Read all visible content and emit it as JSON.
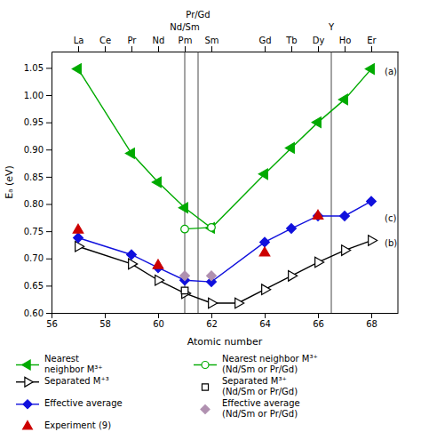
{
  "chart_data": {
    "type": "line",
    "x_label": "Atomic number",
    "y_label": "Eₐ (eV)",
    "xlim": [
      56,
      69
    ],
    "ylim": [
      0.6,
      1.08
    ],
    "xticks": [
      56,
      58,
      60,
      62,
      64,
      66,
      68
    ],
    "yticks": [
      {
        "value": 0.6,
        "label": "0.60"
      },
      {
        "value": 0.65,
        "label": "0.65"
      },
      {
        "value": 0.7,
        "label": "0.70"
      },
      {
        "value": 0.75,
        "label": "0.75"
      },
      {
        "value": 0.8,
        "label": "0.80"
      },
      {
        "value": 0.85,
        "label": "0.85"
      },
      {
        "value": 0.9,
        "label": "0.90"
      },
      {
        "value": 0.95,
        "label": "0.95"
      },
      {
        "value": 1.0,
        "label": "1.00"
      },
      {
        "value": 1.05,
        "label": "1.05"
      }
    ],
    "x2ticks": [
      {
        "value": 57,
        "label": "La"
      },
      {
        "value": 58,
        "label": "Ce"
      },
      {
        "value": 59,
        "label": "Pr"
      },
      {
        "value": 60,
        "label": "Nd"
      },
      {
        "value": 61,
        "label": "Pm"
      },
      {
        "value": 62,
        "label": "Sm"
      },
      {
        "value": 64,
        "label": "Gd"
      },
      {
        "value": 65,
        "label": "Tb"
      },
      {
        "value": 66,
        "label": "Dy"
      },
      {
        "value": 67,
        "label": "Ho"
      },
      {
        "value": 68,
        "label": "Er"
      }
    ],
    "grid": false,
    "legend": "bottom",
    "series": [
      {
        "name": "Nearest\nneighbor M³⁺",
        "color": "#00aa00",
        "marker": "triangle-left",
        "line_style": "solid",
        "x": [
          57,
          59,
          60,
          61,
          62,
          64,
          65,
          66,
          67,
          68
        ],
        "values": [
          1.048,
          0.893,
          0.84,
          0.793,
          0.756,
          0.855,
          0.903,
          0.95,
          0.992,
          1.048
        ]
      },
      {
        "name": "Nearest neighbor M³⁺\n(Nd/Sm or Pr/Gd)",
        "color": "#00aa00",
        "marker": "circle-open",
        "line_style": "solid",
        "x": [
          61,
          62
        ],
        "values": [
          0.754,
          0.757
        ]
      },
      {
        "name": "Separated M⁺³",
        "color": "#000000",
        "marker": "triangle-right-open",
        "line_style": "solid",
        "x": [
          57,
          59,
          60,
          61,
          62,
          63,
          64,
          65,
          66,
          67,
          68
        ],
        "values": [
          0.722,
          0.69,
          0.66,
          0.636,
          0.618,
          0.618,
          0.643,
          0.668,
          0.693,
          0.715,
          0.733
        ]
      },
      {
        "name": "Separated M³⁺\n(Nd/Sm or Pr/Gd)",
        "color": "#000000",
        "marker": "square-open",
        "line_style": "none",
        "x": [
          61
        ],
        "values": [
          0.641
        ]
      },
      {
        "name": "Effective average",
        "color": "#1010dd",
        "marker": "diamond",
        "line_style": "solid",
        "x": [
          57,
          59,
          60,
          61,
          62,
          64,
          65,
          66,
          67,
          68
        ],
        "values": [
          0.738,
          0.707,
          0.683,
          0.66,
          0.657,
          0.73,
          0.755,
          0.778,
          0.778,
          0.805
        ]
      },
      {
        "name": "Effective average\n(Nd/Sm or Pr/Gd)",
        "color": "#b090b0",
        "marker": "diamond",
        "line_style": "none",
        "x": [
          61,
          62
        ],
        "values": [
          0.668,
          0.668
        ]
      },
      {
        "name": "Experiment (9)",
        "color": "#cc0000",
        "marker": "triangle-up",
        "line_style": "none",
        "x": [
          57,
          60,
          64,
          66
        ],
        "values": [
          0.752,
          0.687,
          0.71,
          0.778
        ]
      }
    ],
    "vlines": [
      {
        "x": 61.0,
        "label": "Nd/Sm"
      },
      {
        "x": 61.5,
        "label": "Pr/Gd"
      },
      {
        "x": 66.5,
        "label": "Y"
      }
    ],
    "annotations": [
      {
        "text": "(a)",
        "x": 68.5,
        "y": 1.042
      },
      {
        "text": "(c)",
        "x": 68.5,
        "y": 0.773
      },
      {
        "text": "(b)",
        "x": 68.5,
        "y": 0.728
      }
    ]
  }
}
